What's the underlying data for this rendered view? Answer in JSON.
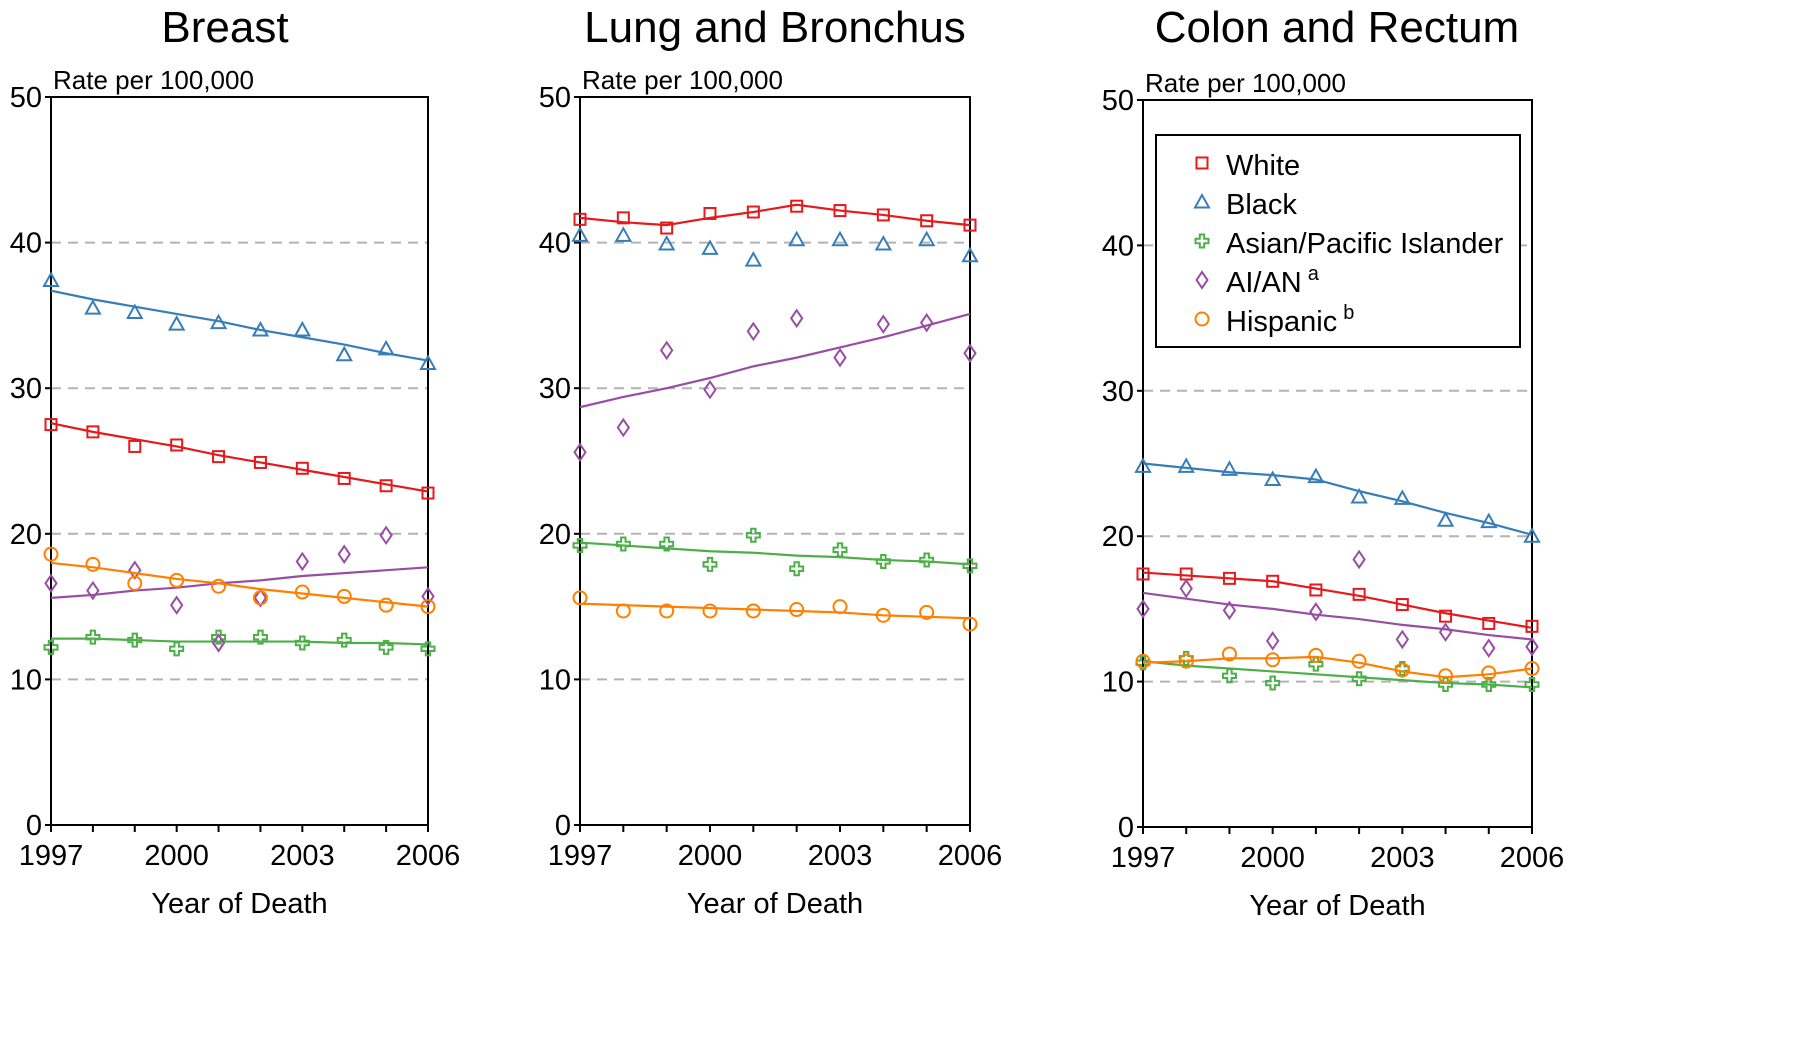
{
  "figure": {
    "series_names": [
      "White",
      "Black",
      "Asian/Pacific Islander",
      "AI/AN",
      "Hispanic"
    ],
    "series_sup": [
      "",
      "",
      "",
      "a",
      "b"
    ],
    "colors": {
      "White": "#e41a1c",
      "Black": "#377eb8",
      "Asian/Pacific Islander": "#4daf4a",
      "AI/AN": "#984ea3",
      "Hispanic": "#ff7f00"
    },
    "markers": {
      "White": "square",
      "Black": "triangle",
      "Asian/Pacific Islander": "plus",
      "AI/AN": "diamond",
      "Hispanic": "circle"
    },
    "legend_panel": 2
  },
  "chart_data": [
    {
      "type": "scatter",
      "title": "Breast",
      "ylabel": "Rate per 100,000",
      "xlabel": "Year of Death",
      "xlim": [
        1997,
        2006
      ],
      "ylim": [
        0,
        50
      ],
      "xticks": [
        1997,
        2000,
        2003,
        2006
      ],
      "yticks": [
        0,
        10,
        20,
        30,
        40,
        50
      ],
      "grid": [
        10,
        20,
        30,
        40
      ],
      "x": [
        1997,
        1998,
        1999,
        2000,
        2001,
        2002,
        2003,
        2004,
        2005,
        2006
      ],
      "series": [
        {
          "name": "White",
          "values": [
            27.5,
            27.0,
            26.0,
            26.1,
            25.3,
            24.9,
            24.5,
            23.8,
            23.3,
            22.8
          ],
          "trend": [
            27.6,
            27.0,
            26.5,
            26.0,
            25.4,
            24.9,
            24.4,
            23.9,
            23.4,
            22.9
          ]
        },
        {
          "name": "Black",
          "values": [
            37.4,
            35.5,
            35.2,
            34.4,
            34.5,
            34.0,
            34.0,
            32.3,
            32.7,
            31.7
          ],
          "trend": [
            36.7,
            36.1,
            35.6,
            35.1,
            34.6,
            34.0,
            33.5,
            33.0,
            32.4,
            31.9
          ]
        },
        {
          "name": "Asian/Pacific Islander",
          "values": [
            12.2,
            12.9,
            12.7,
            12.1,
            12.9,
            12.9,
            12.5,
            12.7,
            12.2,
            12.1
          ],
          "trend": [
            12.8,
            12.8,
            12.7,
            12.6,
            12.6,
            12.6,
            12.6,
            12.5,
            12.5,
            12.4
          ]
        },
        {
          "name": "AI/AN",
          "values": [
            16.6,
            16.1,
            17.5,
            15.1,
            12.5,
            15.6,
            18.1,
            18.6,
            19.9,
            15.7
          ],
          "trend": [
            15.6,
            15.8,
            16.1,
            16.3,
            16.6,
            16.8,
            17.1,
            17.3,
            17.5,
            17.7
          ]
        },
        {
          "name": "Hispanic",
          "values": [
            18.6,
            17.9,
            16.6,
            16.8,
            16.4,
            15.6,
            16.0,
            15.7,
            15.1,
            15.0
          ],
          "trend": [
            18.0,
            17.7,
            17.3,
            16.9,
            16.6,
            16.2,
            15.9,
            15.6,
            15.3,
            15.0
          ]
        }
      ]
    },
    {
      "type": "scatter",
      "title": "Lung and Bronchus",
      "ylabel": "Rate per 100,000",
      "xlabel": "Year of Death",
      "xlim": [
        1997,
        2006
      ],
      "ylim": [
        0,
        50
      ],
      "xticks": [
        1997,
        2000,
        2003,
        2006
      ],
      "yticks": [
        0,
        10,
        20,
        30,
        40,
        50
      ],
      "grid": [
        10,
        20,
        30,
        40
      ],
      "x": [
        1997,
        1998,
        1999,
        2000,
        2001,
        2002,
        2003,
        2004,
        2005,
        2006
      ],
      "series": [
        {
          "name": "White",
          "values": [
            41.6,
            41.7,
            41.0,
            42.0,
            42.1,
            42.5,
            42.2,
            41.9,
            41.5,
            41.2
          ],
          "trend": [
            41.7,
            41.4,
            41.2,
            41.7,
            42.1,
            42.6,
            42.2,
            41.9,
            41.5,
            41.2
          ]
        },
        {
          "name": "Black",
          "values": [
            40.5,
            40.5,
            39.9,
            39.6,
            38.8,
            40.2,
            40.2,
            39.9,
            40.2,
            39.1
          ]
        },
        {
          "name": "Asian/Pacific Islander",
          "values": [
            19.2,
            19.3,
            19.3,
            17.9,
            19.9,
            17.6,
            18.9,
            18.1,
            18.2,
            17.8
          ],
          "trend": [
            19.4,
            19.2,
            19.0,
            18.8,
            18.7,
            18.5,
            18.4,
            18.2,
            18.1,
            17.9
          ]
        },
        {
          "name": "AI/AN",
          "values": [
            25.6,
            27.3,
            32.6,
            29.9,
            33.9,
            34.8,
            32.1,
            34.4,
            34.5,
            32.4
          ],
          "trend": [
            28.7,
            29.4,
            30.0,
            30.7,
            31.5,
            32.1,
            32.8,
            33.5,
            34.3,
            35.1
          ]
        },
        {
          "name": "Hispanic",
          "values": [
            15.6,
            14.7,
            14.7,
            14.7,
            14.7,
            14.8,
            15.0,
            14.4,
            14.6,
            13.8
          ],
          "trend": [
            15.2,
            15.1,
            15.0,
            14.9,
            14.8,
            14.7,
            14.6,
            14.4,
            14.3,
            14.2
          ]
        }
      ]
    },
    {
      "type": "scatter",
      "title": "Colon and Rectum",
      "ylabel": "Rate per 100,000",
      "xlabel": "Year of Death",
      "xlim": [
        1997,
        2006
      ],
      "ylim": [
        0,
        50
      ],
      "xticks": [
        1997,
        2000,
        2003,
        2006
      ],
      "yticks": [
        0,
        10,
        20,
        30,
        40,
        50
      ],
      "grid": [
        10,
        20,
        30,
        40
      ],
      "legend": "top-right",
      "x": [
        1997,
        1998,
        1999,
        2000,
        2001,
        2002,
        2003,
        2004,
        2005,
        2006
      ],
      "series": [
        {
          "name": "White",
          "values": [
            17.4,
            17.4,
            17.1,
            16.9,
            16.3,
            16.0,
            15.3,
            14.5,
            14.0,
            13.8
          ],
          "trend": [
            17.5,
            17.3,
            17.1,
            16.9,
            16.4,
            15.9,
            15.3,
            14.7,
            14.2,
            13.7
          ]
        },
        {
          "name": "Black",
          "values": [
            24.8,
            24.8,
            24.6,
            23.9,
            24.1,
            22.7,
            22.6,
            21.1,
            21.0,
            20.0
          ],
          "trend": [
            25.0,
            24.7,
            24.4,
            24.2,
            23.9,
            23.1,
            22.4,
            21.6,
            20.9,
            20.1
          ]
        },
        {
          "name": "Asian/Pacific Islander",
          "values": [
            11.3,
            11.6,
            10.4,
            9.9,
            11.2,
            10.2,
            10.9,
            9.8,
            9.8,
            9.8
          ],
          "trend": [
            11.4,
            11.1,
            10.9,
            10.7,
            10.5,
            10.3,
            10.1,
            9.9,
            9.8,
            9.6
          ]
        },
        {
          "name": "AI/AN",
          "values": [
            15.0,
            16.4,
            14.9,
            12.8,
            14.8,
            18.4,
            12.9,
            13.4,
            12.3,
            12.4
          ],
          "trend": [
            16.1,
            15.7,
            15.3,
            15.0,
            14.6,
            14.3,
            13.9,
            13.6,
            13.2,
            12.9
          ]
        },
        {
          "name": "Hispanic",
          "values": [
            11.4,
            11.4,
            11.9,
            11.5,
            11.8,
            11.4,
            10.8,
            10.4,
            10.6,
            10.9
          ],
          "trend": [
            11.3,
            11.4,
            11.6,
            11.6,
            11.7,
            11.3,
            10.7,
            10.3,
            10.5,
            10.9
          ]
        }
      ]
    }
  ]
}
